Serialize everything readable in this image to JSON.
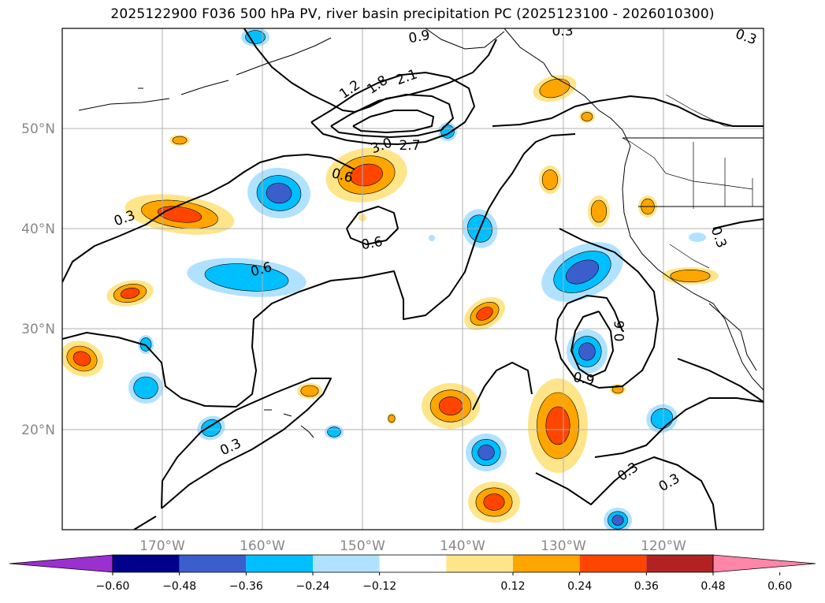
{
  "title": "2025122900 F036 500 hPa PV, river basin precipitation PC (2025123100 - 2026010300)",
  "map": {
    "projection": "PlateCarree",
    "lon_range": [
      -179,
      -109
    ],
    "lat_range": [
      10,
      60
    ],
    "lat_labels": [
      "50°N",
      "40°N",
      "30°N",
      "20°N"
    ],
    "lon_labels": [
      "170°W",
      "160°W",
      "150°W",
      "140°W",
      "130°W",
      "120°W"
    ],
    "gridlines": true
  },
  "pv_contour_labels": [
    "0.9",
    "0.3",
    "0.3",
    "1.2",
    "1.8",
    "2.1",
    "3.0",
    "2.7",
    "0.6",
    "0.3",
    "0.6",
    "0.6",
    "0.6",
    "0.9",
    "0.3",
    "0.3",
    "0.3",
    "0.3"
  ],
  "colorbar": {
    "ticks": [
      "−0.60",
      "−0.48",
      "−0.36",
      "−0.24",
      "−0.12",
      "0.12",
      "0.24",
      "0.36",
      "0.48",
      "0.60"
    ],
    "colors": [
      "#9b30d0",
      "#00008b",
      "#3a5fcd",
      "#00bfff",
      "#b0e2ff",
      "#ffffff",
      "#ffe58a",
      "#ffa500",
      "#ff4500",
      "#b22222",
      "#ff86a8"
    ],
    "extend": "both"
  },
  "chart_data": {
    "type": "heatmap",
    "title": "2025122900 F036 500 hPa PV, river basin precipitation PC (2025123100 - 2026010300)",
    "field": "river basin precipitation PC",
    "contour_field": "500 hPa PV",
    "contour_levels": [
      0.3,
      0.6,
      0.9,
      1.2,
      1.5,
      1.8,
      2.1,
      2.4,
      2.7,
      3.0
    ],
    "color_levels": [
      -0.6,
      -0.48,
      -0.36,
      -0.24,
      -0.12,
      0.12,
      0.24,
      0.36,
      0.48,
      0.6
    ],
    "xlim": [
      -179,
      -109
    ],
    "ylim": [
      10,
      60
    ],
    "x_ticks": [
      "170°W",
      "160°W",
      "150°W",
      "140°W",
      "130°W",
      "120°W"
    ],
    "y_ticks": [
      "50°N",
      "40°N",
      "30°N",
      "20°N"
    ]
  }
}
